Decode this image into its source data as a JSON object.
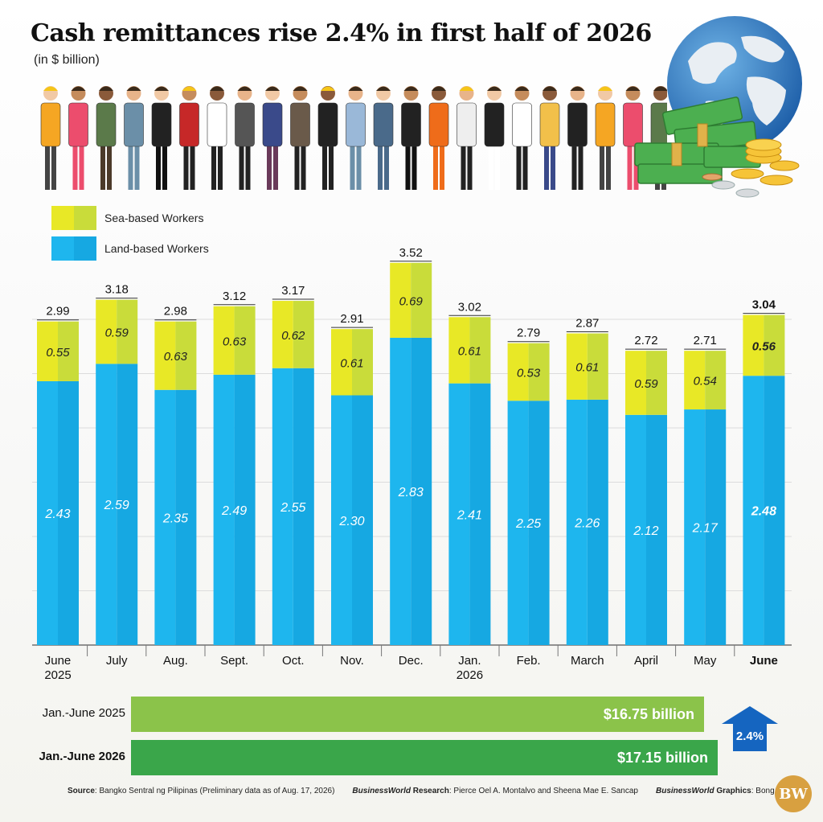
{
  "header": {
    "title": "Cash remittances rise 2.4% in first half of 2026",
    "subtitle": "(in $ billion)"
  },
  "legend": {
    "sea_label": "Sea-based Workers",
    "land_label": "Land-based Workers"
  },
  "colors": {
    "sea": "#e8e826",
    "sea_shade": "#c9dc3a",
    "land": "#1eb6ee",
    "land_shade": "#16a8e2",
    "total_2025": "#8bc34a",
    "total_2026": "#3aa64a",
    "arrow": "#1565c0"
  },
  "chart_data": {
    "type": "bar",
    "stacked": true,
    "title": "Cash remittances rise 2.4% in first half of 2026",
    "subtitle": "(in $ billion)",
    "categories": [
      "June\n2025",
      "July",
      "Aug.",
      "Sept.",
      "Oct.",
      "Nov.",
      "Dec.",
      "Jan.\n2026",
      "Feb.",
      "March",
      "April",
      "May",
      "June"
    ],
    "series": [
      {
        "name": "Land-based Workers",
        "values": [
          2.43,
          2.59,
          2.35,
          2.49,
          2.55,
          2.3,
          2.83,
          2.41,
          2.25,
          2.26,
          2.12,
          2.17,
          2.48
        ]
      },
      {
        "name": "Sea-based Workers",
        "values": [
          0.55,
          0.59,
          0.63,
          0.63,
          0.62,
          0.61,
          0.69,
          0.61,
          0.53,
          0.61,
          0.59,
          0.54,
          0.56
        ]
      }
    ],
    "totals": [
      "2.99",
      "3.18",
      "2.98",
      "3.12",
      "3.17",
      "2.91",
      "3.52",
      "3.02",
      "2.79",
      "2.87",
      "2.72",
      "2.71",
      "3.04"
    ],
    "land_labels": [
      "2.43",
      "2.59",
      "2.35",
      "2.49",
      "2.55",
      "2.30",
      "2.83",
      "2.41",
      "2.25",
      "2.26",
      "2.12",
      "2.17",
      "2.48"
    ],
    "sea_labels": [
      "0.55",
      "0.59",
      "0.63",
      "0.63",
      "0.62",
      "0.61",
      "0.69",
      "0.61",
      "0.53",
      "0.61",
      "0.59",
      "0.54",
      "0.56"
    ],
    "highlight_index": 12,
    "ylim": [
      0,
      3.6
    ],
    "grid": true,
    "legend": "top-left"
  },
  "totals": [
    {
      "label": "Jan.-June 2025",
      "value_text": "$16.75 billion",
      "value": 16.75
    },
    {
      "label": "Jan.-June 2026",
      "value_text": "$17.15 billion",
      "value": 17.15
    }
  ],
  "growth": {
    "text": "2.4%",
    "icon": "up-arrow-icon"
  },
  "footer": {
    "source_label": "Source",
    "source_text": ": Bangko Sentral ng Pilipinas (Preliminary data as of Aug. 17, 2026)",
    "research_brand": "BusinessWorld",
    "research_label": " Research",
    "research_text": ": Pierce Oel A. Montalvo and Sheena Mae E. Sancap",
    "graphics_brand": "BusinessWorld",
    "graphics_label": " Graphics",
    "graphics_text": ": Bong R. Fortin",
    "logo_text": "BW"
  }
}
